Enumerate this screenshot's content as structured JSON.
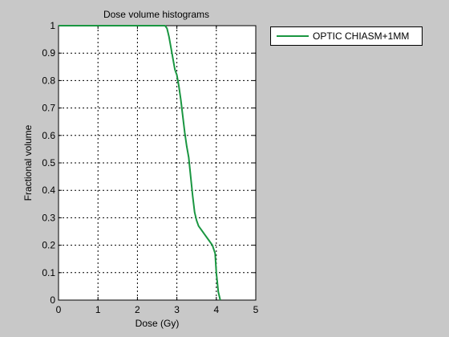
{
  "chart_data": {
    "type": "line",
    "title": "Dose volume histograms",
    "xlabel": "Dose (Gy)",
    "ylabel": "Fractional volume",
    "xlim": [
      0,
      5
    ],
    "ylim": [
      0,
      1
    ],
    "xticks": [
      "0",
      "1",
      "2",
      "3",
      "4",
      "5"
    ],
    "yticks": [
      "0",
      "0.1",
      "0.2",
      "0.3",
      "0.4",
      "0.5",
      "0.6",
      "0.7",
      "0.8",
      "0.9",
      "1"
    ],
    "grid": true,
    "legend_position": "outside-top-right",
    "series": [
      {
        "name": "OPTIC CHIASM+1MM",
        "color": "#1a9641",
        "x": [
          0,
          2.7,
          2.75,
          2.8,
          2.85,
          2.9,
          2.95,
          3.0,
          3.05,
          3.1,
          3.15,
          3.2,
          3.25,
          3.3,
          3.35,
          3.4,
          3.45,
          3.5,
          3.55,
          3.6,
          3.7,
          3.8,
          3.9,
          3.97,
          4.0,
          4.05,
          4.1
        ],
        "y": [
          1.0,
          1.0,
          0.99,
          0.96,
          0.92,
          0.88,
          0.84,
          0.82,
          0.78,
          0.73,
          0.67,
          0.61,
          0.56,
          0.52,
          0.45,
          0.38,
          0.32,
          0.29,
          0.27,
          0.26,
          0.24,
          0.22,
          0.2,
          0.17,
          0.1,
          0.03,
          0.0
        ]
      }
    ]
  }
}
